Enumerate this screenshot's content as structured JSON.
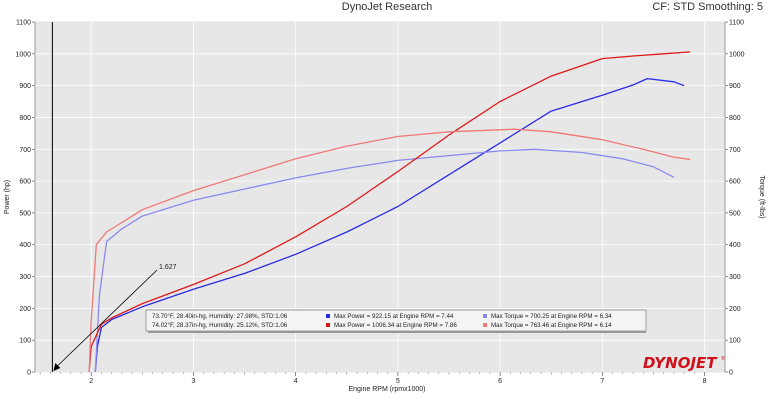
{
  "header": {
    "title": "DynoJet Research",
    "cf_info": "CF: STD Smoothing: 5"
  },
  "logo_text": "DYNOJET",
  "chart_data": {
    "type": "line",
    "title": "DynoJet Research",
    "xlabel": "Engine RPM (rpmx1000)",
    "ylabel_left": "Power (hp)",
    "ylabel_right": "Torque (ft-lbs)",
    "xlim": [
      1.45,
      8.2
    ],
    "ylim": [
      0,
      1100
    ],
    "x_ticks": [
      "2",
      "3",
      "4",
      "5",
      "6",
      "7",
      "8"
    ],
    "y_ticks": [
      "0",
      "100",
      "200",
      "300",
      "400",
      "500",
      "600",
      "700",
      "800",
      "900",
      "1000",
      "1100"
    ],
    "grid": true,
    "cursor": {
      "x": 1.62,
      "label": "1.627"
    },
    "series": [
      {
        "kind": "power",
        "color": "#2a2ae6",
        "points": [
          [
            2.04,
            0
          ],
          [
            2.06,
            80
          ],
          [
            2.1,
            140
          ],
          [
            2.2,
            165
          ],
          [
            2.5,
            205
          ],
          [
            3,
            260
          ],
          [
            3.5,
            310
          ],
          [
            4,
            370
          ],
          [
            4.5,
            440
          ],
          [
            5,
            520
          ],
          [
            5.5,
            620
          ],
          [
            6,
            720
          ],
          [
            6.5,
            820
          ],
          [
            7,
            870
          ],
          [
            7.3,
            902
          ],
          [
            7.44,
            922
          ],
          [
            7.7,
            912
          ],
          [
            7.8,
            900
          ]
        ]
      },
      {
        "kind": "torque",
        "color": "#8a8aee",
        "points": [
          [
            2.04,
            0
          ],
          [
            2.08,
            240
          ],
          [
            2.15,
            410
          ],
          [
            2.3,
            450
          ],
          [
            2.5,
            490
          ],
          [
            3,
            540
          ],
          [
            3.5,
            575
          ],
          [
            4,
            610
          ],
          [
            4.5,
            640
          ],
          [
            5,
            665
          ],
          [
            5.5,
            680
          ],
          [
            6,
            695
          ],
          [
            6.34,
            700
          ],
          [
            6.8,
            690
          ],
          [
            7.2,
            670
          ],
          [
            7.5,
            645
          ],
          [
            7.7,
            612
          ]
        ]
      },
      {
        "kind": "power",
        "color": "#e01818",
        "points": [
          [
            1.98,
            0
          ],
          [
            2.0,
            80
          ],
          [
            2.1,
            150
          ],
          [
            2.2,
            170
          ],
          [
            2.5,
            215
          ],
          [
            3,
            275
          ],
          [
            3.5,
            340
          ],
          [
            4,
            425
          ],
          [
            4.5,
            520
          ],
          [
            5,
            630
          ],
          [
            5.5,
            745
          ],
          [
            6,
            850
          ],
          [
            6.5,
            930
          ],
          [
            7,
            985
          ],
          [
            7.3,
            993
          ],
          [
            7.6,
            1000
          ],
          [
            7.86,
            1006
          ]
        ]
      },
      {
        "kind": "torque",
        "color": "#f07878",
        "points": [
          [
            1.98,
            0
          ],
          [
            2.0,
            160
          ],
          [
            2.05,
            400
          ],
          [
            2.15,
            440
          ],
          [
            2.3,
            470
          ],
          [
            2.5,
            510
          ],
          [
            3,
            570
          ],
          [
            3.5,
            620
          ],
          [
            4,
            670
          ],
          [
            4.5,
            710
          ],
          [
            5,
            740
          ],
          [
            5.5,
            755
          ],
          [
            6.14,
            763
          ],
          [
            6.5,
            755
          ],
          [
            7,
            730
          ],
          [
            7.4,
            700
          ],
          [
            7.7,
            675
          ],
          [
            7.86,
            668
          ]
        ]
      }
    ],
    "legend": [
      {
        "conditions": "73.70°F, 28.40in-hg, Humidity: 27.98%, STD:1.06",
        "power_color": "#2a2ae6",
        "power_text": "Max Power = 922.15 at Engine RPM = 7.44",
        "torque_color": "#8a8aee",
        "torque_text": "Max Torque = 700.25 at Engine RPM = 6.34"
      },
      {
        "conditions": "74.02°F, 28.37in-hg, Humidity: 25.12%, STD:1.06",
        "power_color": "#e01818",
        "power_text": "Max Power = 1006.34 at Engine RPM = 7.86",
        "torque_color": "#f07878",
        "torque_text": "Max Torque = 763.46 at Engine RPM = 6.14"
      }
    ]
  }
}
